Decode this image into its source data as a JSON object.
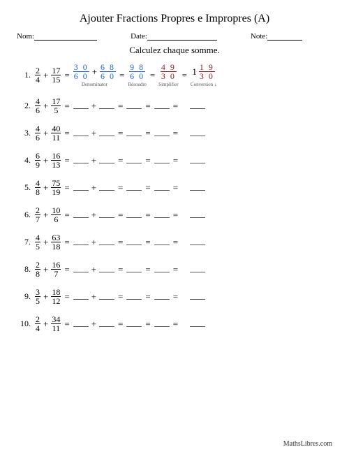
{
  "title": "Ajouter Fractions Propres e Impropres (A)",
  "header": {
    "name_label": "Nom:",
    "date_label": "Date:",
    "score_label": "Note:"
  },
  "subtitle": "Calculez chaque somme.",
  "example": {
    "num": "1.",
    "f1": {
      "n": "2",
      "d": "4"
    },
    "f2": {
      "n": "17",
      "d": "15"
    },
    "step1a": {
      "n": "3 0",
      "d": "6 0",
      "color": "#1a66d6",
      "bar": "#1a66d6"
    },
    "step1b": {
      "n": "6 8",
      "d": "6 0",
      "color": "#1a66d6",
      "bar": "#1a66d6"
    },
    "step1_label": "Denominator",
    "step2": {
      "n": "9 8",
      "d": "6 0",
      "color": "#1a66d6",
      "bar": "#1a66d6"
    },
    "step2_label": "Résoudre",
    "step3": {
      "n": "4 9",
      "d": "3 0",
      "color": "#8a1c1c",
      "bar": "#8a1c1c"
    },
    "step3_label": "Simplifier",
    "step4_whole": "1",
    "step4_frac": {
      "n": "1 9",
      "d": "3 0",
      "color": "#8a1c1c",
      "bar": "#8a1c1c"
    },
    "step4_label": "Conversion ↓"
  },
  "problems": [
    {
      "num": "2.",
      "f1": {
        "n": "4",
        "d": "6"
      },
      "f2": {
        "n": "17",
        "d": "5"
      }
    },
    {
      "num": "3.",
      "f1": {
        "n": "4",
        "d": "6"
      },
      "f2": {
        "n": "40",
        "d": "11"
      }
    },
    {
      "num": "4.",
      "f1": {
        "n": "6",
        "d": "9"
      },
      "f2": {
        "n": "16",
        "d": "13"
      }
    },
    {
      "num": "5.",
      "f1": {
        "n": "4",
        "d": "8"
      },
      "f2": {
        "n": "75",
        "d": "19"
      }
    },
    {
      "num": "6.",
      "f1": {
        "n": "2",
        "d": "7"
      },
      "f2": {
        "n": "10",
        "d": "6"
      }
    },
    {
      "num": "7.",
      "f1": {
        "n": "4",
        "d": "5"
      },
      "f2": {
        "n": "63",
        "d": "18"
      }
    },
    {
      "num": "8.",
      "f1": {
        "n": "2",
        "d": "8"
      },
      "f2": {
        "n": "16",
        "d": "7"
      }
    },
    {
      "num": "9.",
      "f1": {
        "n": "3",
        "d": "5"
      },
      "f2": {
        "n": "18",
        "d": "12"
      }
    },
    {
      "num": "10.",
      "f1": {
        "n": "2",
        "d": "4"
      },
      "f2": {
        "n": "34",
        "d": "11"
      }
    }
  ],
  "layout": {
    "blank_widths": {
      "step": 22,
      "final": 22
    },
    "headerline_widths": {
      "nom": 90,
      "date": 100,
      "note": 50
    }
  },
  "footer": "MathsLibres.com"
}
